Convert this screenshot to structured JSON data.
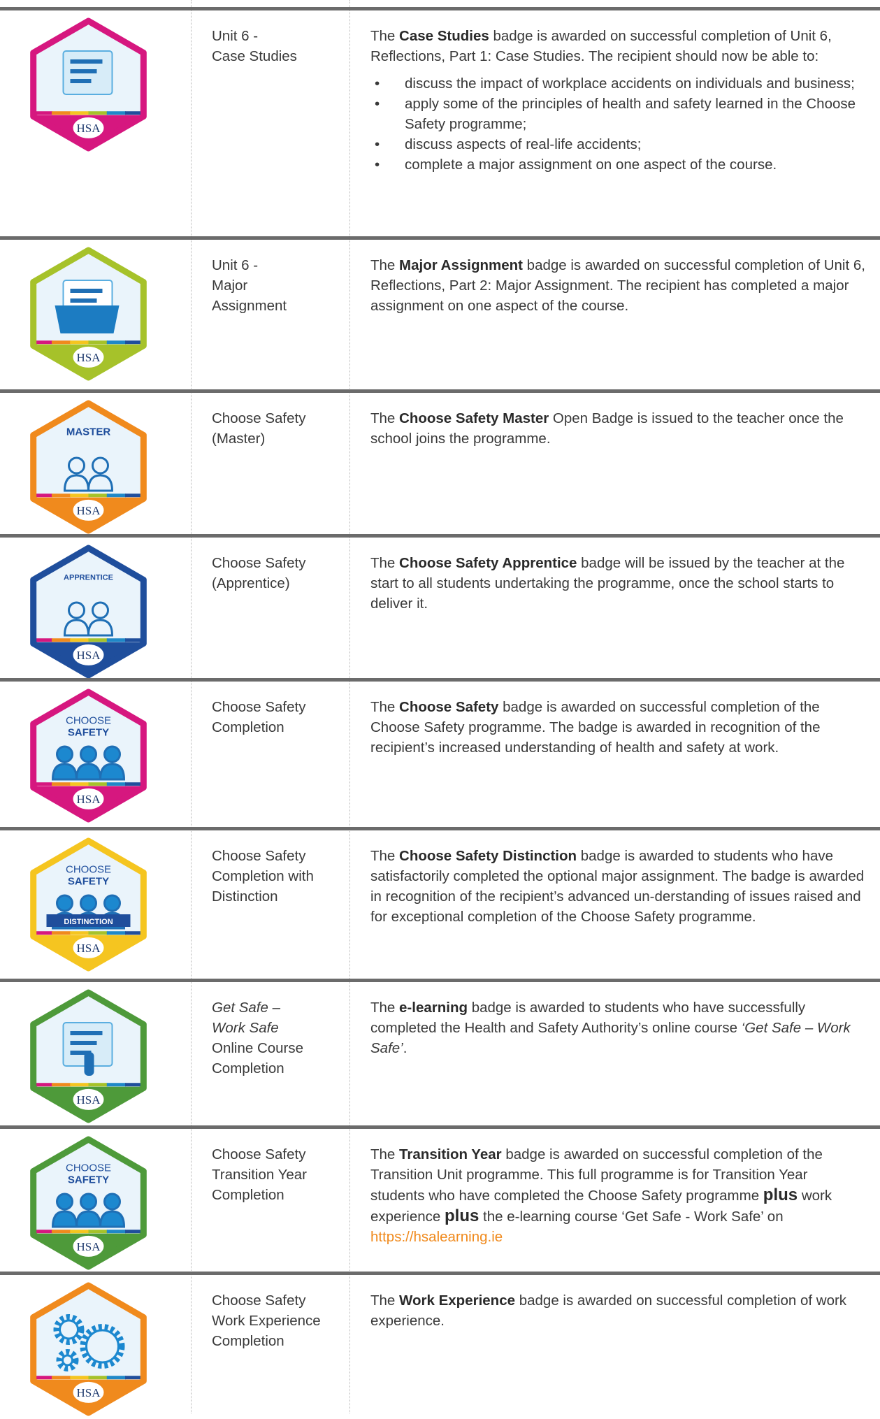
{
  "logo": "HSA",
  "rows": [
    {
      "badge": {
        "color": "#d6177f",
        "icon": "board",
        "labels": []
      },
      "name": [
        "Unit 6 -",
        "Case Studies"
      ],
      "description": [
        "The ",
        {
          "text": "Case Studies",
          "style": "bold"
        },
        " badge is awarded on successful completion of Unit 6, Reflections, Part 1: Case Studies.  The recipient should now be able to:"
      ],
      "bullets": [
        "discuss the impact of workplace accidents on individuals and business;",
        "apply some of the principles of health and safety learned in the Choose Safety programme;",
        "discuss aspects of real-life accidents;",
        "complete a major assignment on one aspect of the course."
      ]
    },
    {
      "badge": {
        "color": "#a6c22a",
        "icon": "folder",
        "labels": []
      },
      "name": [
        "Unit 6 -",
        "Major",
        "Assignment"
      ],
      "description": [
        "The ",
        {
          "text": "Major Assignment",
          "style": "bold"
        },
        " badge is awarded on successful completion of Unit 6, Reflections, Part 2: Major Assignment.  The recipient has completed a major assignment on one aspect of the course."
      ]
    },
    {
      "badge": {
        "color": "#f08a1d",
        "icon": "teacher",
        "labels": [
          "MASTER"
        ]
      },
      "name": [
        "Choose Safety",
        "(Master)"
      ],
      "description": [
        "The ",
        {
          "text": "Choose Safety Master",
          "style": "bold"
        },
        " Open Badge is issued to the teacher once the school joins the programme."
      ]
    },
    {
      "badge": {
        "color": "#1f4e9c",
        "icon": "students",
        "labels": [
          "APPRENTICE"
        ]
      },
      "name": [
        "Choose Safety",
        "(Apprentice)"
      ],
      "description": [
        "The ",
        {
          "text": "Choose Safety Apprentice",
          "style": "bold"
        },
        " badge will be issued by the teacher at the start to all students undertaking the programme, once the school starts to deliver it."
      ]
    },
    {
      "badge": {
        "color": "#d6177f",
        "icon": "people",
        "labels": [
          "CHOOSE",
          "SAFETY"
        ]
      },
      "name": [
        "Choose Safety",
        "Completion"
      ],
      "description": [
        "The ",
        {
          "text": "Choose Safety",
          "style": "bold"
        },
        " badge is awarded on successful completion of the Choose Safety programme.  The badge is awarded in recognition of the recipient’s increased understanding of health and safety at work."
      ]
    },
    {
      "badge": {
        "color": "#f5c520",
        "icon": "people",
        "labels": [
          "CHOOSE",
          "SAFETY",
          "DISTINCTION"
        ]
      },
      "name": [
        "Choose Safety",
        "Completion with",
        "Distinction"
      ],
      "description": [
        "The ",
        {
          "text": "Choose Safety Distinction",
          "style": "bold"
        },
        " badge is awarded to students who have satisfactorily completed the optional major assignment.  The badge is awarded in recognition of the recipient’s advanced un-derstanding of issues raised and for exceptional completion of the Choose Safety programme."
      ]
    },
    {
      "badge": {
        "color": "#4e9a3a",
        "icon": "tablet",
        "labels": []
      },
      "name": [
        {
          "text": "Get Safe –",
          "style": "italic"
        },
        {
          "text": "Work Safe",
          "style": "italic"
        },
        "Online Course",
        "Completion"
      ],
      "description": [
        "The ",
        {
          "text": "e-learning",
          "style": "bold"
        },
        " badge is awarded to students who have successfully completed the Health and Safety Authority’s online course ",
        {
          "text": "‘Get Safe – Work Safe’",
          "style": "italic"
        },
        "."
      ]
    },
    {
      "badge": {
        "color": "#4e9a3a",
        "icon": "people",
        "labels": [
          "CHOOSE",
          "SAFETY"
        ]
      },
      "name": [
        "Choose Safety",
        "Transition Year",
        "Completion"
      ],
      "description": [
        "The ",
        {
          "text": "Transition Year",
          "style": "bold"
        },
        " badge is awarded on successful completion of the Transition Unit programme.  This full programme is for Transition Year students who have completed the Choose Safety programme ",
        {
          "text": "plus",
          "style": "big"
        },
        " work experience ",
        {
          "text": "plus",
          "style": "big"
        },
        " the e-learning course ‘Get Safe - Work Safe’ on ",
        {
          "text": "https://hsalearning.ie",
          "style": "link"
        }
      ]
    },
    {
      "badge": {
        "color": "#f08a1d",
        "icon": "gears",
        "labels": []
      },
      "name": [
        "Choose Safety",
        "Work Experience",
        "Completion"
      ],
      "description": [
        "The ",
        {
          "text": "Work Experience",
          "style": "bold"
        },
        " badge is awarded on successful completion of work experience."
      ]
    }
  ]
}
